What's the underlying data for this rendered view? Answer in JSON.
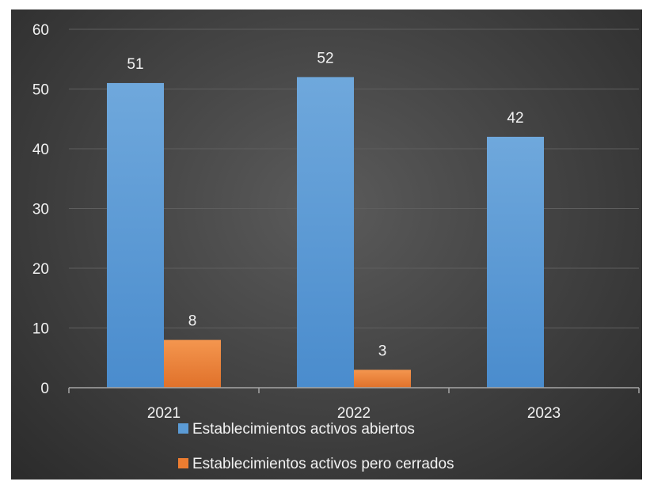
{
  "chart_data": {
    "type": "bar",
    "categories": [
      "2021",
      "2022",
      "2023"
    ],
    "series": [
      {
        "name": "Establecimientos activos abiertos",
        "values": [
          51,
          52,
          42
        ],
        "color": "#5b9bd5"
      },
      {
        "name": "Establecimientos activos pero cerrados",
        "values": [
          8,
          3,
          null
        ],
        "color": "#ed7d31"
      }
    ],
    "title": "",
    "xlabel": "",
    "ylabel": "",
    "ylim": [
      0,
      60
    ],
    "yticks": [
      0,
      10,
      20,
      30,
      40,
      50,
      60
    ],
    "grid": true,
    "legend_position": "bottom",
    "background": "#404040"
  }
}
